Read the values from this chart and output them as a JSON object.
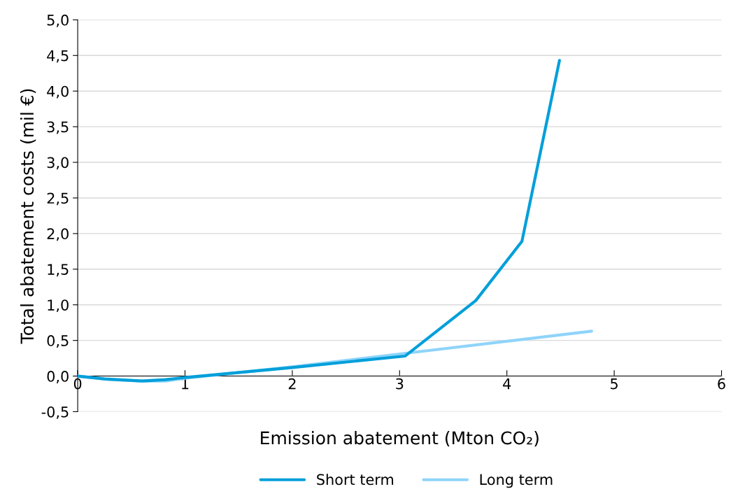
{
  "chart_data": {
    "type": "line",
    "xlabel": "Emission abatement (Mton CO₂)",
    "ylabel": "Total abatement costs (mil €)",
    "series": [
      {
        "name": "Short term",
        "color": "#009fda",
        "x": [
          0,
          0.25,
          0.6,
          0.82,
          1,
          2,
          3.05,
          3.71,
          4.14,
          4.49
        ],
        "values": [
          0,
          -0.04,
          -0.07,
          -0.05,
          -0.02,
          0.12,
          0.28,
          1.06,
          1.89,
          4.43
        ]
      },
      {
        "name": "Long term",
        "color": "#8fd4fa",
        "x": [
          0,
          0.3,
          0.6,
          0.82,
          1,
          2,
          3,
          4.79
        ],
        "values": [
          0,
          -0.05,
          -0.07,
          -0.07,
          -0.03,
          0.13,
          0.31,
          0.63
        ]
      }
    ],
    "xlim": [
      0,
      6
    ],
    "xticks": [
      0,
      1,
      2,
      3,
      4,
      5,
      6
    ],
    "ylim": [
      -0.5,
      5.0
    ],
    "yticks": [
      {
        "value": -0.5,
        "label": "-0,5"
      },
      {
        "value": 0,
        "label": "0,0"
      },
      {
        "value": 0.5,
        "label": "0,5"
      },
      {
        "value": 1.0,
        "label": "1,0"
      },
      {
        "value": 1.5,
        "label": "1,5"
      },
      {
        "value": 2.0,
        "label": "2,0"
      },
      {
        "value": 2.5,
        "label": "2,5"
      },
      {
        "value": 3.0,
        "label": "3,0"
      },
      {
        "value": 3.5,
        "label": "3,5"
      },
      {
        "value": 4.0,
        "label": "4,0"
      },
      {
        "value": 4.5,
        "label": "4,5"
      },
      {
        "value": 5.0,
        "label": "5,0"
      }
    ],
    "grid": "y",
    "legend": "bottom",
    "marker": "none",
    "line_style": "solid"
  }
}
